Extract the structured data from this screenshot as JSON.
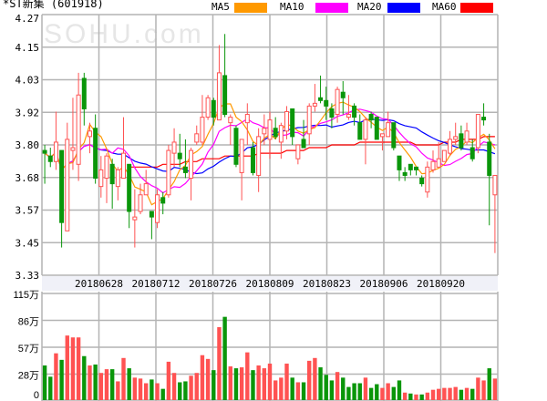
{
  "header": {
    "name": "*ST新集",
    "code": "(601918)"
  },
  "watermark": "SOHU.com",
  "legend": [
    {
      "label": "MA5",
      "color": "#ff9900"
    },
    {
      "label": "MA10",
      "color": "#ff00ff"
    },
    {
      "label": "MA20",
      "color": "#0000ff"
    },
    {
      "label": "MA60",
      "color": "#ff0000"
    }
  ],
  "colors": {
    "up": "#ff5252",
    "down": "#0a960a",
    "grid": "#b4b4b4",
    "date_band": "#f0f1f8"
  },
  "chart_data": {
    "type": "candlestick",
    "price_axis": {
      "ticks": [
        "4.27",
        "4.15",
        "4.03",
        "3.92",
        "3.80",
        "3.68",
        "3.57",
        "3.45",
        "3.33"
      ],
      "range": [
        3.33,
        4.27
      ]
    },
    "volume_axis": {
      "ticks": [
        "115万",
        "86万",
        "57万",
        "28万",
        "0"
      ],
      "range": [
        0,
        115
      ],
      "unit": "万"
    },
    "date_labels": [
      "20180628",
      "20180712",
      "20180726",
      "20180809",
      "20180823",
      "20180906",
      "20180920"
    ],
    "ohlc": [
      [
        3.78,
        3.8,
        3.66,
        3.77
      ],
      [
        3.76,
        3.79,
        3.72,
        3.74
      ],
      [
        3.74,
        3.92,
        3.71,
        3.81
      ],
      [
        3.78,
        3.78,
        3.43,
        3.52
      ],
      [
        3.49,
        3.88,
        3.49,
        3.82
      ],
      [
        3.78,
        3.97,
        3.71,
        3.79
      ],
      [
        3.73,
        4.06,
        3.67,
        3.98
      ],
      [
        4.04,
        4.06,
        3.87,
        3.93
      ],
      [
        3.83,
        3.88,
        3.77,
        3.85
      ],
      [
        3.86,
        3.91,
        3.66,
        3.68
      ],
      [
        3.65,
        3.76,
        3.61,
        3.71
      ],
      [
        3.68,
        3.77,
        3.59,
        3.76
      ],
      [
        3.73,
        3.75,
        3.57,
        3.66
      ],
      [
        3.65,
        3.72,
        3.6,
        3.71
      ],
      [
        3.68,
        3.9,
        3.68,
        3.77
      ],
      [
        3.73,
        3.73,
        3.5,
        3.56
      ],
      [
        3.53,
        3.64,
        3.43,
        3.54
      ],
      [
        3.56,
        3.66,
        3.55,
        3.62
      ],
      [
        3.62,
        3.71,
        3.62,
        3.66
      ],
      [
        3.56,
        3.56,
        3.46,
        3.54
      ],
      [
        3.52,
        3.64,
        3.5,
        3.62
      ],
      [
        3.61,
        3.63,
        3.55,
        3.59
      ],
      [
        3.62,
        3.8,
        3.61,
        3.78
      ],
      [
        3.77,
        3.86,
        3.72,
        3.81
      ],
      [
        3.77,
        3.84,
        3.72,
        3.75
      ],
      [
        3.72,
        3.82,
        3.68,
        3.7
      ],
      [
        3.68,
        3.79,
        3.6,
        3.78
      ],
      [
        3.81,
        3.87,
        3.8,
        3.84
      ],
      [
        3.81,
        3.98,
        3.8,
        3.9
      ],
      [
        3.9,
        3.98,
        3.89,
        3.97
      ],
      [
        3.96,
        3.97,
        3.87,
        3.9
      ],
      [
        3.89,
        4.16,
        3.89,
        4.06
      ],
      [
        4.05,
        4.2,
        3.9,
        3.91
      ],
      [
        3.88,
        3.91,
        3.8,
        3.9
      ],
      [
        3.86,
        3.87,
        3.72,
        3.73
      ],
      [
        3.7,
        3.82,
        3.6,
        3.82
      ],
      [
        3.88,
        3.95,
        3.8,
        3.91
      ],
      [
        3.79,
        3.81,
        3.69,
        3.7
      ],
      [
        3.69,
        3.86,
        3.63,
        3.83
      ],
      [
        3.84,
        3.91,
        3.8,
        3.86
      ],
      [
        3.82,
        3.92,
        3.75,
        3.89
      ],
      [
        3.86,
        3.9,
        3.82,
        3.83
      ],
      [
        3.81,
        3.88,
        3.75,
        3.87
      ],
      [
        3.85,
        3.94,
        3.82,
        3.92
      ],
      [
        3.93,
        3.93,
        3.8,
        3.83
      ],
      [
        3.75,
        3.8,
        3.73,
        3.8
      ],
      [
        3.82,
        3.89,
        3.79,
        3.79
      ],
      [
        3.84,
        3.95,
        3.8,
        3.94
      ],
      [
        3.94,
        4.02,
        3.92,
        3.95
      ],
      [
        3.97,
        4.05,
        3.95,
        3.96
      ],
      [
        3.96,
        4.01,
        3.89,
        3.94
      ],
      [
        3.93,
        3.95,
        3.86,
        3.9
      ],
      [
        3.91,
        4.01,
        3.88,
        4.0
      ],
      [
        3.99,
        4.03,
        3.91,
        3.97
      ],
      [
        3.9,
        3.98,
        3.89,
        3.91
      ],
      [
        3.94,
        3.95,
        3.87,
        3.9
      ],
      [
        3.88,
        3.91,
        3.82,
        3.82
      ],
      [
        3.82,
        3.9,
        3.73,
        3.89
      ],
      [
        3.91,
        3.92,
        3.86,
        3.89
      ],
      [
        3.9,
        3.9,
        3.82,
        3.82
      ],
      [
        3.83,
        3.84,
        3.78,
        3.84
      ],
      [
        3.83,
        3.92,
        3.83,
        3.88
      ],
      [
        3.88,
        3.88,
        3.78,
        3.79
      ],
      [
        3.76,
        3.76,
        3.67,
        3.71
      ],
      [
        3.7,
        3.72,
        3.67,
        3.69
      ],
      [
        3.73,
        3.73,
        3.69,
        3.71
      ],
      [
        3.72,
        3.72,
        3.69,
        3.71
      ],
      [
        3.68,
        3.69,
        3.65,
        3.66
      ],
      [
        3.63,
        3.74,
        3.61,
        3.72
      ],
      [
        3.71,
        3.78,
        3.7,
        3.74
      ],
      [
        3.72,
        3.81,
        3.72,
        3.75
      ],
      [
        3.74,
        3.78,
        3.74,
        3.78
      ],
      [
        3.77,
        3.85,
        3.76,
        3.82
      ],
      [
        3.82,
        3.88,
        3.8,
        3.83
      ],
      [
        3.84,
        3.87,
        3.78,
        3.79
      ],
      [
        3.81,
        3.88,
        3.8,
        3.85
      ],
      [
        3.79,
        3.82,
        3.74,
        3.75
      ],
      [
        3.79,
        3.91,
        3.77,
        3.91
      ],
      [
        3.9,
        3.95,
        3.87,
        3.89
      ],
      [
        3.81,
        3.84,
        3.51,
        3.69
      ],
      [
        3.62,
        3.69,
        3.41,
        3.69
      ]
    ],
    "volume": [
      38,
      26,
      51,
      44,
      70,
      68,
      68,
      48,
      38,
      39,
      30,
      34,
      34,
      21,
      46,
      35,
      25,
      24,
      19,
      23,
      19,
      13,
      42,
      30,
      20,
      21,
      27,
      30,
      49,
      45,
      33,
      79,
      90,
      37,
      35,
      36,
      52,
      33,
      38,
      35,
      40,
      22,
      25,
      40,
      25,
      20,
      20,
      43,
      46,
      36,
      28,
      22,
      31,
      25,
      15,
      19,
      19,
      25,
      14,
      18,
      14,
      19,
      15,
      22,
      9,
      8,
      7,
      7,
      9,
      12,
      13,
      14,
      14,
      15,
      12,
      14,
      13,
      25,
      22,
      35,
      24
    ],
    "volume_dir": [
      "G",
      "G",
      "R",
      "G",
      "R",
      "R",
      "R",
      "G",
      "R",
      "G",
      "R",
      "R",
      "G",
      "R",
      "R",
      "G",
      "R",
      "R",
      "R",
      "G",
      "R",
      "G",
      "R",
      "R",
      "G",
      "G",
      "R",
      "R",
      "R",
      "R",
      "G",
      "R",
      "G",
      "R",
      "G",
      "R",
      "R",
      "G",
      "R",
      "R",
      "R",
      "R",
      "R",
      "R",
      "G",
      "R",
      "G",
      "R",
      "R",
      "G",
      "G",
      "G",
      "R",
      "G",
      "G",
      "G",
      "G",
      "R",
      "G",
      "G",
      "R",
      "R",
      "G",
      "G",
      "R",
      "G",
      "R",
      "G",
      "R",
      "R",
      "R",
      "R",
      "R",
      "R",
      "G",
      "R",
      "G",
      "R",
      "R",
      "G",
      "R"
    ],
    "ma60": [
      null,
      null,
      null,
      null,
      null,
      null,
      null,
      null,
      null,
      null,
      null,
      null,
      null,
      null,
      null,
      3.72,
      3.72,
      3.72,
      3.72,
      3.72,
      3.72,
      3.73,
      3.73,
      3.73,
      3.73,
      3.74,
      3.74,
      3.74,
      3.75,
      3.75,
      3.75,
      3.75,
      3.76,
      3.76,
      3.76,
      3.76,
      3.76,
      3.76,
      3.77,
      3.77,
      3.77,
      3.77,
      3.77,
      3.78,
      3.78,
      3.78,
      3.78,
      3.79,
      3.79,
      3.79,
      3.79,
      3.8,
      3.8,
      3.8,
      3.8,
      3.8,
      3.81,
      3.81,
      3.81,
      3.81,
      3.81,
      3.81,
      3.81,
      3.81,
      3.81,
      3.81,
      3.8,
      3.8,
      3.8,
      3.8,
      3.8,
      3.81,
      3.81,
      3.81,
      3.82,
      3.82,
      3.82,
      3.82,
      3.83,
      3.83,
      3.83
    ]
  }
}
